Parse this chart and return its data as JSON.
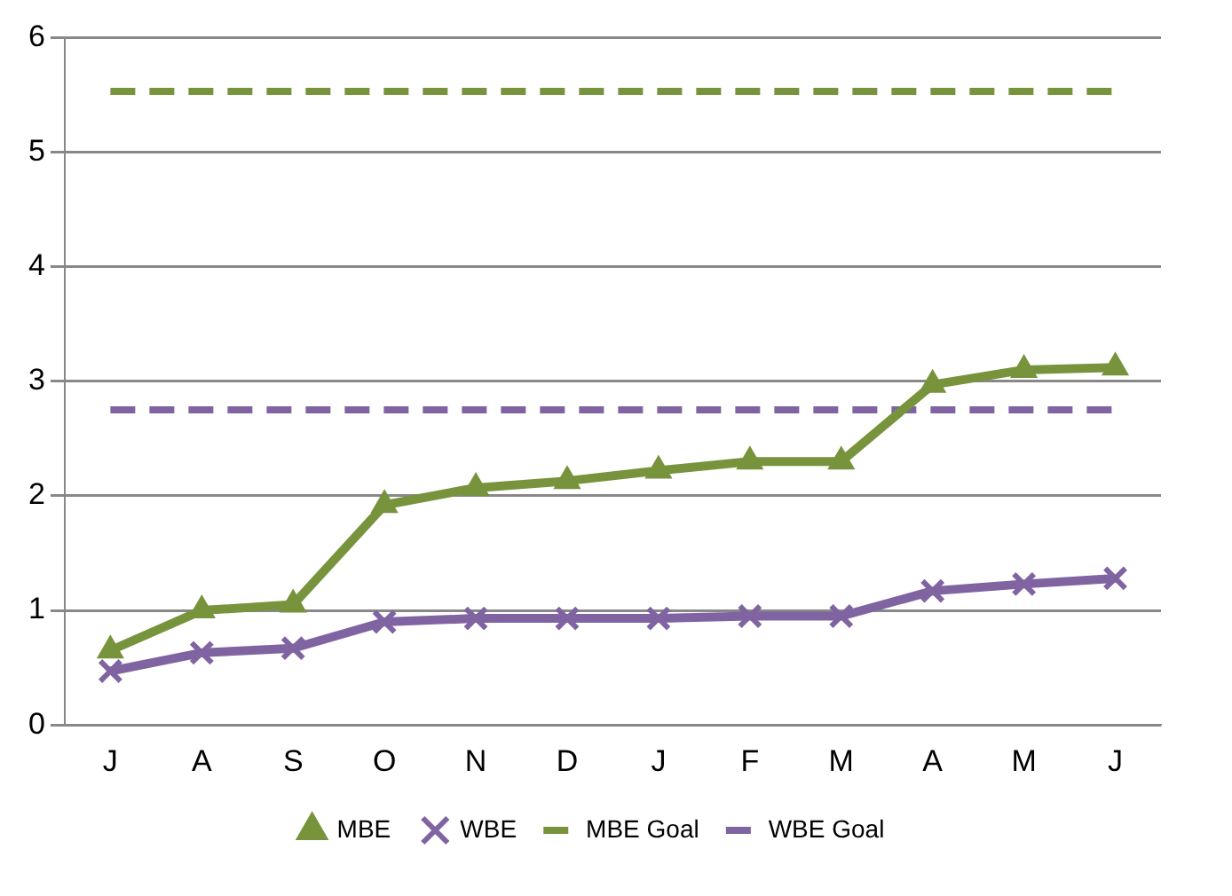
{
  "chart_data": {
    "type": "line",
    "categories": [
      "J",
      "A",
      "S",
      "O",
      "N",
      "D",
      "J",
      "F",
      "M",
      "A",
      "M",
      "J"
    ],
    "series": [
      {
        "name": "MBE",
        "color": "#77933c",
        "marker": "triangle",
        "line_style": "solid",
        "values": [
          0.65,
          1.0,
          1.05,
          1.92,
          2.07,
          2.13,
          2.22,
          2.3,
          2.3,
          2.97,
          3.1,
          3.12
        ]
      },
      {
        "name": "WBE",
        "color": "#8064a2",
        "marker": "cross",
        "line_style": "solid",
        "values": [
          0.47,
          0.63,
          0.67,
          0.9,
          0.93,
          0.93,
          0.93,
          0.95,
          0.95,
          1.17,
          1.23,
          1.28
        ]
      },
      {
        "name": "MBE Goal",
        "color": "#77933c",
        "marker": "none",
        "line_style": "dashed",
        "values": [
          5.53,
          5.53,
          5.53,
          5.53,
          5.53,
          5.53,
          5.53,
          5.53,
          5.53,
          5.53,
          5.53,
          5.53
        ]
      },
      {
        "name": "WBE Goal",
        "color": "#8064a2",
        "marker": "none",
        "line_style": "dashed",
        "values": [
          2.75,
          2.75,
          2.75,
          2.75,
          2.75,
          2.75,
          2.75,
          2.75,
          2.75,
          2.75,
          2.75,
          2.75
        ]
      }
    ],
    "ylim": [
      0,
      6
    ],
    "yticks": [
      0,
      1,
      2,
      3,
      4,
      5,
      6
    ],
    "grid": "y",
    "legend": "bottom"
  }
}
